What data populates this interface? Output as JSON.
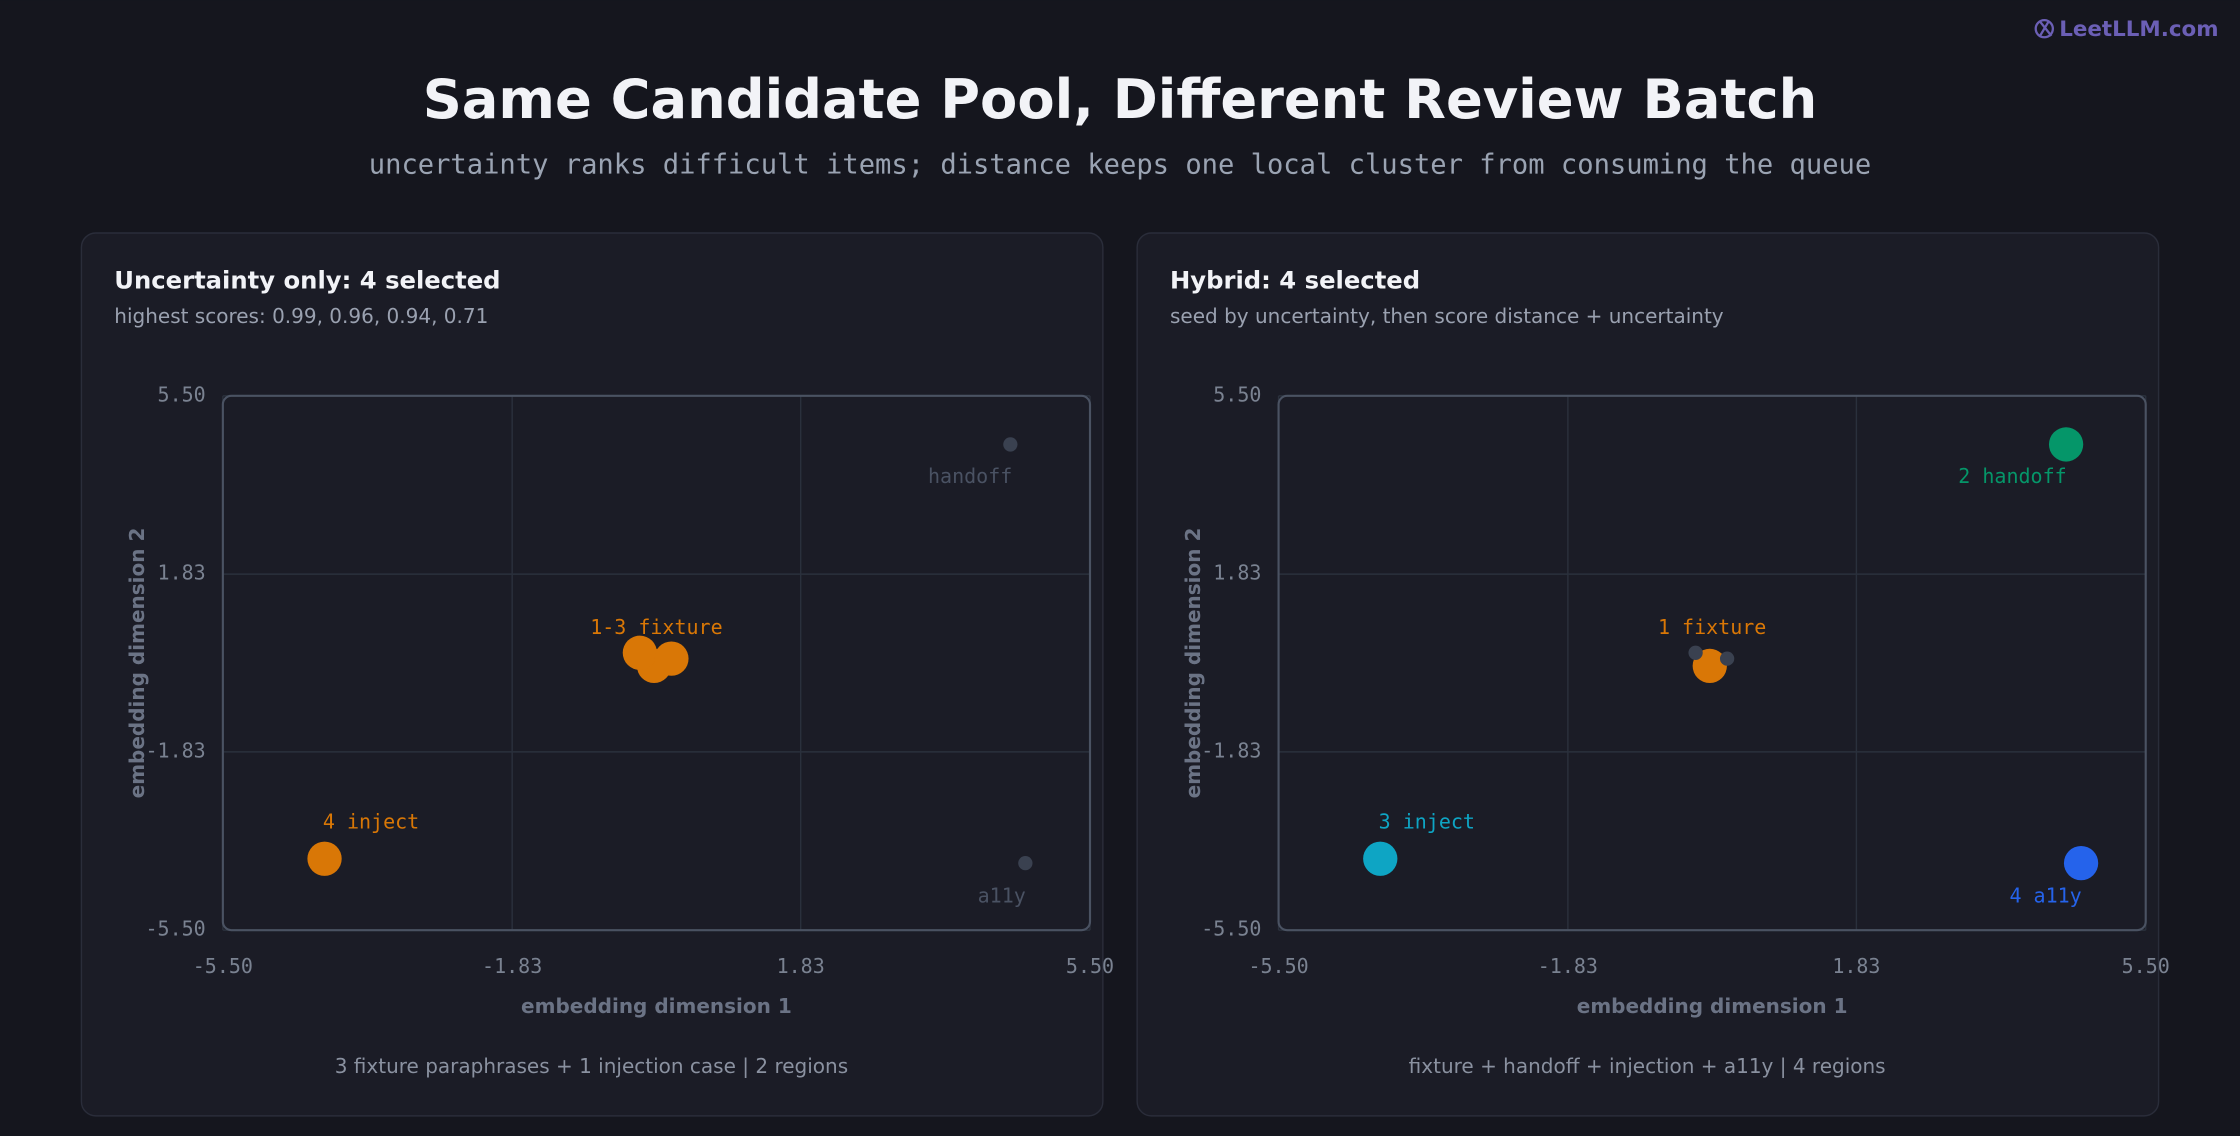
{
  "brand": "LeetLLM.com",
  "header": {
    "title": "Same Candidate Pool, Different Review Batch",
    "subtitle": "uncertainty ranks difficult items; distance keeps one local cluster from consuming the queue"
  },
  "chart_data": [
    {
      "type": "scatter",
      "title": "Uncertainty only: 4 selected",
      "subtitle": "highest scores: 0.99, 0.96, 0.94, 0.71",
      "xlabel": "embedding dimension 1",
      "ylabel": "embedding dimension 2",
      "footer": "3 fixture paraphrases + 1 injection case | 2 regions",
      "xlim": [
        -5.5,
        5.5
      ],
      "ylim": [
        -5.5,
        5.5
      ],
      "xticks": [
        {
          "value": -5.5,
          "label": "-5.50"
        },
        -1.83,
        1.83,
        {
          "value": 5.5,
          "label": "5.50"
        }
      ],
      "yticks": [
        {
          "value": -5.5,
          "label": "-5.50"
        },
        -1.83,
        1.83,
        {
          "value": 5.5,
          "label": "5.50"
        }
      ],
      "grid": true,
      "series": [
        {
          "color": "#3a4150",
          "selected": false,
          "x": [
            4.49,
            4.68
          ],
          "values": [
            4.5,
            -4.12
          ]
        },
        {
          "color": "#d97706",
          "selected": true,
          "x": [
            -0.03,
            -0.21,
            0.19,
            -4.21
          ],
          "values": [
            -0.06,
            0.21,
            0.09,
            -4.03
          ]
        }
      ],
      "annotations": [
        {
          "text": "handoff",
          "x": 3.98,
          "y": 3.82,
          "color": "#4a5263"
        },
        {
          "text": "a11y",
          "x": 4.38,
          "y": -4.82,
          "color": "#4a5263"
        },
        {
          "text": "1-3 fixture",
          "x": 0.0,
          "y": 0.71,
          "color": "#d97706"
        },
        {
          "text": "4 inject",
          "x": -3.62,
          "y": -3.29,
          "color": "#d97706"
        }
      ]
    },
    {
      "type": "scatter",
      "title": "Hybrid: 4 selected",
      "subtitle": "seed by uncertainty, then score distance + uncertainty",
      "xlabel": "embedding dimension 1",
      "ylabel": "embedding dimension 2",
      "footer": "fixture + handoff + injection + a11y | 4 regions",
      "xlim": [
        -5.5,
        5.5
      ],
      "ylim": [
        -5.5,
        5.5
      ],
      "xticks": [
        {
          "value": -5.5,
          "label": "-5.50"
        },
        -1.83,
        1.83,
        {
          "value": 5.5,
          "label": "5.50"
        }
      ],
      "yticks": [
        {
          "value": -5.5,
          "label": "-5.50"
        },
        -1.83,
        1.83,
        {
          "value": 5.5,
          "label": "5.50"
        }
      ],
      "grid": true,
      "series": [
        {
          "color": "#d97706",
          "selected": true,
          "x": [
            -0.03
          ],
          "values": [
            -0.06
          ]
        },
        {
          "color": "#3a4150",
          "selected": false,
          "x": [
            -0.21,
            0.19
          ],
          "values": [
            0.21,
            0.09
          ]
        },
        {
          "color": "#059669",
          "selected": true,
          "x": [
            4.49
          ],
          "values": [
            4.5
          ]
        },
        {
          "color": "#0ea5c4",
          "selected": true,
          "x": [
            -4.21
          ],
          "values": [
            -4.03
          ]
        },
        {
          "color": "#2563eb",
          "selected": true,
          "x": [
            4.68
          ],
          "values": [
            -4.12
          ]
        }
      ],
      "annotations": [
        {
          "text": "2 handoff",
          "x": 3.81,
          "y": 3.82,
          "color": "#059669"
        },
        {
          "text": "1 fixture",
          "x": 0.0,
          "y": 0.71,
          "color": "#d97706"
        },
        {
          "text": "3 inject",
          "x": -3.62,
          "y": -3.29,
          "color": "#0ea5c4"
        },
        {
          "text": "4 a11y",
          "x": 4.23,
          "y": -4.82,
          "color": "#2563eb"
        }
      ]
    }
  ]
}
